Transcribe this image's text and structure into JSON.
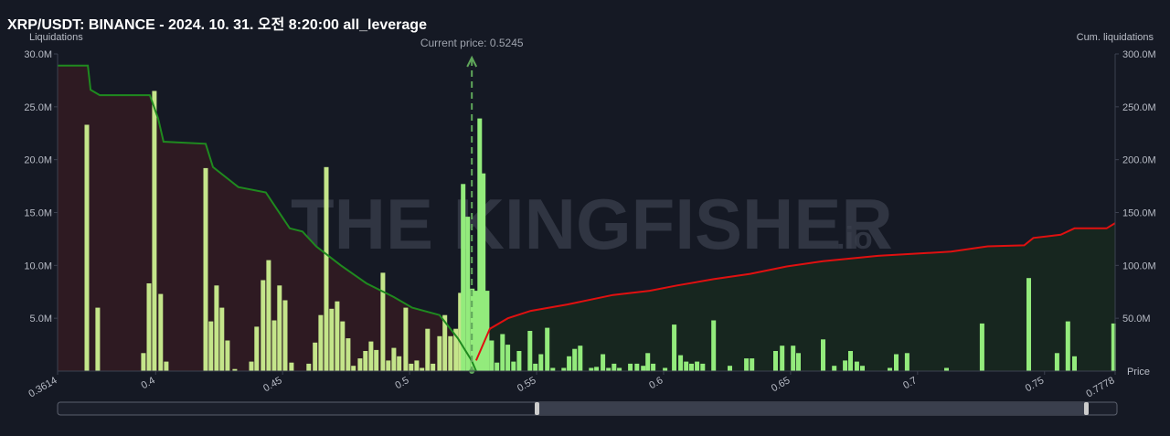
{
  "chart_data": {
    "type": "liquidation",
    "title": "XRP/USDT: BINANCE - 2024. 10. 31. 오전 8:20:00 all_leverage",
    "y_label": "Liquidations",
    "y2_label": "Cum. liquidations",
    "x_label": "Price",
    "watermark": "THE KINGFISHER",
    "watermark_suffix": ".io",
    "current_price": 0.5245,
    "current_price_label": "Current price: 0.5245",
    "current_price_color": "#5fa65a",
    "xlim": [
      0.3614,
      0.7778
    ],
    "xticks": [
      0.3614,
      0.4,
      0.45,
      0.5,
      0.55,
      0.6,
      0.65,
      0.7,
      0.75,
      0.7778
    ],
    "ylim": [
      0,
      30
    ],
    "yticks": [
      {
        "value": 5,
        "label": "5.0M"
      },
      {
        "value": 10,
        "label": "10.0M"
      },
      {
        "value": 15,
        "label": "15.0M"
      },
      {
        "value": 20,
        "label": "20.0M"
      },
      {
        "value": 25,
        "label": "25.0M"
      },
      {
        "value": 30,
        "label": "30.0M"
      }
    ],
    "y2lim": [
      0,
      300
    ],
    "y2ticks": [
      {
        "value": 50,
        "label": "50.0M"
      },
      {
        "value": 100,
        "label": "100.0M"
      },
      {
        "value": 150,
        "label": "150.0M"
      },
      {
        "value": 200,
        "label": "200.0M"
      },
      {
        "value": 250,
        "label": "250.0M"
      },
      {
        "value": 300,
        "label": "300.0M"
      }
    ],
    "bars": [
      {
        "color": "#c4e58a",
        "x": [
          0.3729,
          0.3772,
          0.3952,
          0.3974,
          0.3995,
          0.402,
          0.4042,
          0.4197,
          0.4218,
          0.424,
          0.4261,
          0.4283,
          0.4312,
          0.4377,
          0.4398,
          0.4423,
          0.4445,
          0.4467,
          0.4488,
          0.451,
          0.4535,
          0.4603,
          0.4628,
          0.465,
          0.4672,
          0.4693,
          0.4715,
          0.4736,
          0.4758,
          0.4779,
          0.4805,
          0.4826,
          0.4848,
          0.4869,
          0.4895,
          0.4916,
          0.4938,
          0.4959,
          0.4985,
          0.5006,
          0.5028,
          0.5049,
          0.5071,
          0.5092,
          0.5118,
          0.5139,
          0.5161,
          0.5182,
          0.52
        ],
        "values": [
          23.3,
          6.0,
          1.7,
          8.3,
          26.5,
          7.3,
          0.9,
          19.2,
          4.7,
          8.1,
          6.0,
          2.9,
          0.2,
          0.9,
          4.2,
          8.6,
          10.5,
          4.8,
          8.1,
          6.7,
          0.8,
          0.7,
          2.7,
          5.3,
          19.3,
          5.9,
          6.6,
          4.7,
          3.1,
          0.5,
          1.2,
          1.9,
          2.8,
          2.0,
          9.3,
          1.0,
          2.2,
          1.4,
          6.0,
          0.7,
          1.0,
          0.3,
          4.0,
          0.7,
          3.3,
          5.3,
          3.3,
          4.0,
          7.4
        ]
      },
      {
        "color": "#93eb7c",
        "x": [
          0.5211,
          0.5229,
          0.5247,
          0.5261,
          0.5276,
          0.529,
          0.5305,
          0.5323,
          0.5344,
          0.5366,
          0.5387,
          0.5409,
          0.5431,
          0.5474,
          0.5495,
          0.5517,
          0.5542,
          0.5564,
          0.5607,
          0.5628,
          0.565,
          0.5672,
          0.5715,
          0.5736,
          0.5761,
          0.5783,
          0.5805,
          0.5826,
          0.5869,
          0.5895,
          0.592,
          0.5938,
          0.5959,
          0.6006,
          0.6042,
          0.6067,
          0.6089,
          0.611,
          0.6132,
          0.6154,
          0.6197,
          0.6261,
          0.6326,
          0.6348,
          0.6441,
          0.6467,
          0.651,
          0.6531,
          0.6628,
          0.6672,
          0.6715,
          0.6736,
          0.6761,
          0.6783,
          0.6891,
          0.6916,
          0.6959,
          0.7114,
          0.7254,
          0.7438,
          0.7549,
          0.7592,
          0.7618,
          0.7772
        ],
        "values": [
          17.7,
          14.6,
          7.8,
          7.6,
          23.9,
          18.7,
          7.6,
          2.9,
          0.8,
          3.5,
          2.5,
          0.9,
          1.9,
          3.8,
          0.7,
          1.6,
          4.1,
          0.3,
          0.3,
          1.4,
          2.1,
          2.4,
          0.3,
          0.4,
          1.6,
          0.3,
          0.7,
          0.3,
          0.7,
          0.7,
          0.5,
          1.7,
          0.7,
          0.3,
          4.4,
          1.5,
          0.9,
          0.7,
          0.9,
          0.7,
          4.8,
          0.5,
          1.2,
          1.2,
          1.9,
          2.4,
          2.4,
          1.7,
          3.0,
          0.5,
          1.0,
          1.9,
          0.9,
          0.5,
          0.3,
          1.6,
          1.7,
          0.3,
          4.5,
          8.8,
          1.7,
          4.7,
          1.4,
          4.5
        ]
      }
    ],
    "series": [
      {
        "color": "#1f8a1f",
        "fill": "#2e1a22",
        "axis": "y2",
        "x": [
          0.3614,
          0.3733,
          0.3744,
          0.378,
          0.3977,
          0.401,
          0.4031,
          0.4197,
          0.4226,
          0.4326,
          0.4434,
          0.447,
          0.4528,
          0.4578,
          0.4632,
          0.4729,
          0.483,
          0.4938,
          0.501,
          0.5118,
          0.519,
          0.5244,
          0.5262
        ],
        "values": [
          289,
          289,
          266,
          261,
          261,
          239,
          217,
          215,
          193,
          174,
          169,
          156,
          135,
          132,
          118,
          100,
          83,
          70,
          60,
          53,
          31,
          10,
          0
        ]
      },
      {
        "color": "#e01010",
        "fill": "#17261f",
        "axis": "y2",
        "x": [
          0.5262,
          0.5316,
          0.5387,
          0.5477,
          0.5621,
          0.5801,
          0.5945,
          0.6053,
          0.6197,
          0.6341,
          0.6485,
          0.6628,
          0.6844,
          0.7132,
          0.7276,
          0.742,
          0.7456,
          0.7564,
          0.7618,
          0.7744,
          0.7778
        ],
        "values": [
          10,
          40,
          50,
          57,
          63,
          72,
          76,
          81,
          87,
          92,
          99,
          104,
          109,
          113,
          118,
          119,
          126,
          129,
          135,
          135,
          140
        ]
      }
    ]
  }
}
